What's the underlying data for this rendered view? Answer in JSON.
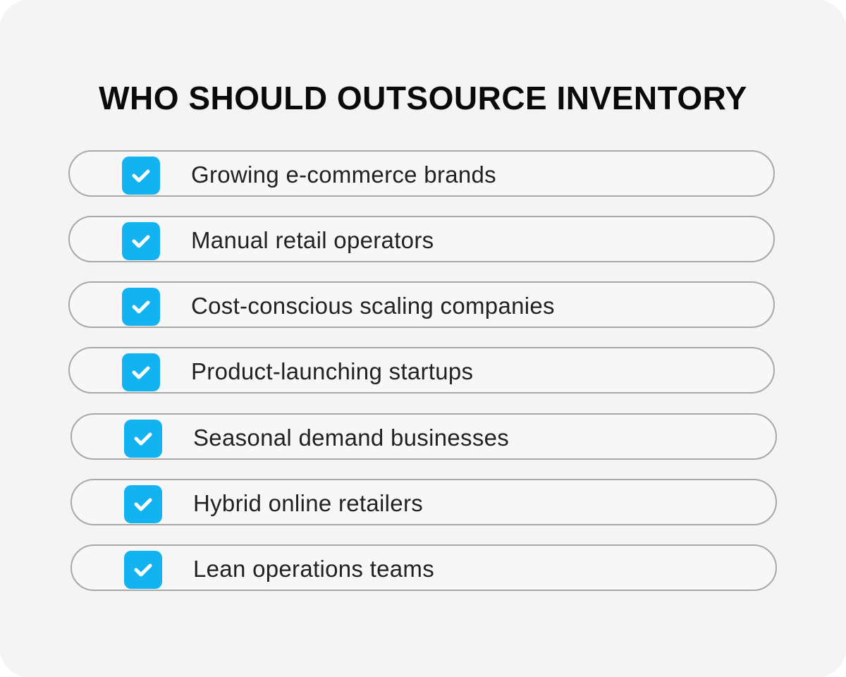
{
  "title": "WHO SHOULD OUTSOURCE INVENTORY",
  "items": [
    "Growing e-commerce brands",
    "Manual retail operators",
    "Cost-conscious scaling companies",
    "Product-launching startups",
    "Seasonal demand businesses",
    "Hybrid online retailers",
    "Lean operations teams"
  ]
}
